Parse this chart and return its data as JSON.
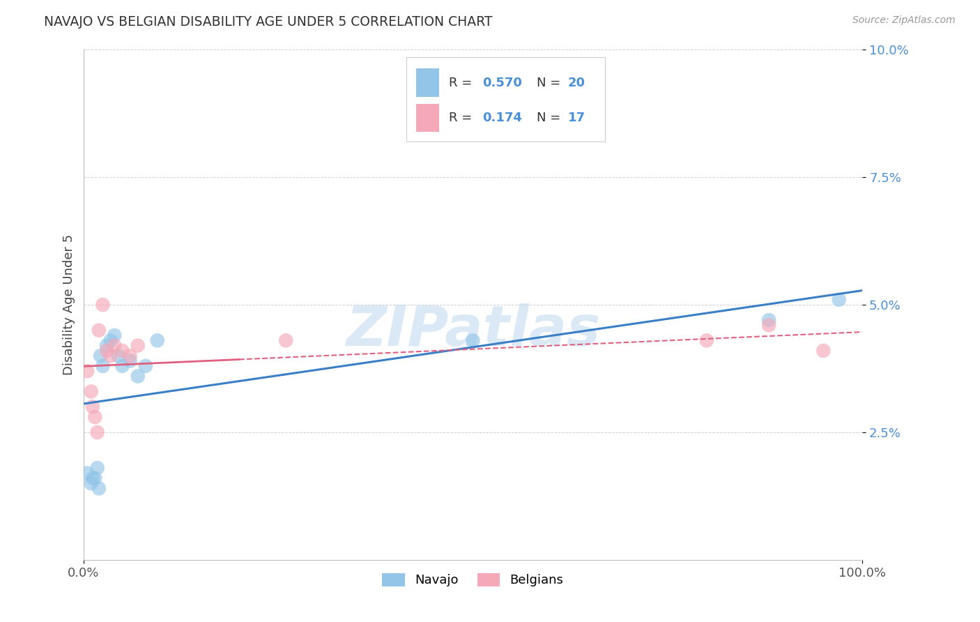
{
  "title": "NAVAJO VS BELGIAN DISABILITY AGE UNDER 5 CORRELATION CHART",
  "source": "Source: ZipAtlas.com",
  "ylabel": "Disability Age Under 5",
  "xlim": [
    0,
    1.0
  ],
  "ylim": [
    0,
    0.1
  ],
  "ytick_values": [
    0.025,
    0.05,
    0.075,
    0.1
  ],
  "navajo_color": "#92C5E8",
  "belgian_color": "#F4A8B8",
  "navajo_line_color": "#3A7EC6",
  "belgian_line_color": "#E06080",
  "navajo_scatter_x": [
    0.005,
    0.01,
    0.012,
    0.015,
    0.018,
    0.02,
    0.022,
    0.025,
    0.03,
    0.035,
    0.04,
    0.045,
    0.05,
    0.06,
    0.07,
    0.08,
    0.095,
    0.5,
    0.88,
    0.97
  ],
  "navajo_scatter_y": [
    0.017,
    0.015,
    0.016,
    0.016,
    0.018,
    0.014,
    0.04,
    0.038,
    0.042,
    0.043,
    0.044,
    0.04,
    0.038,
    0.039,
    0.036,
    0.038,
    0.043,
    0.043,
    0.047,
    0.051
  ],
  "belgian_scatter_x": [
    0.005,
    0.01,
    0.012,
    0.015,
    0.018,
    0.02,
    0.025,
    0.03,
    0.035,
    0.04,
    0.05,
    0.06,
    0.07,
    0.26,
    0.8,
    0.88,
    0.95
  ],
  "belgian_scatter_y": [
    0.037,
    0.033,
    0.03,
    0.028,
    0.025,
    0.045,
    0.05,
    0.041,
    0.04,
    0.042,
    0.041,
    0.04,
    0.042,
    0.043,
    0.043,
    0.046,
    0.041
  ],
  "watermark_text": "ZIPatlas",
  "legend_navajo_R": "0.570",
  "legend_navajo_N": "20",
  "legend_belgian_R": "0.174",
  "legend_belgian_N": "17",
  "background_color": "#ffffff",
  "grid_color": "#d0d0d0"
}
